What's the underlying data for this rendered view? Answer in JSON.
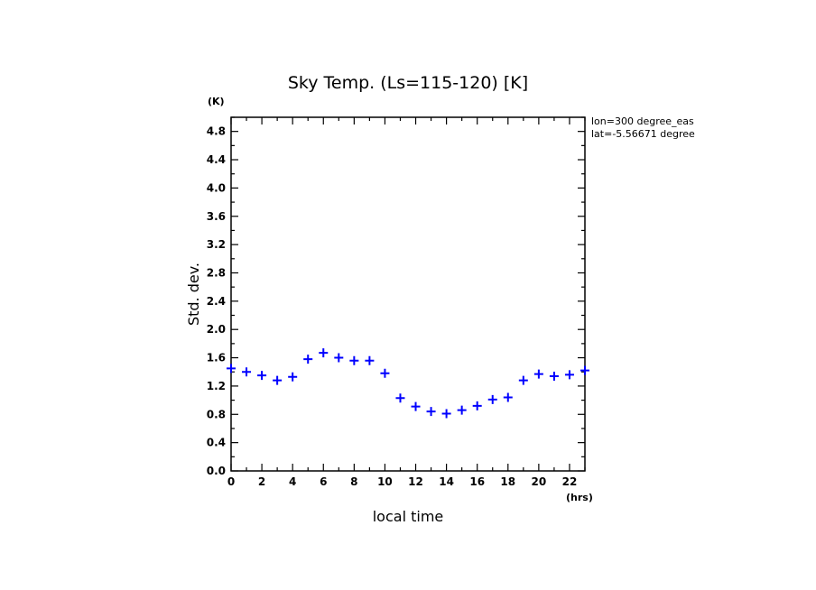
{
  "chart_data": {
    "type": "scatter",
    "title": "Sky Temp. (Ls=115-120) [K]",
    "xlabel": "local time",
    "ylabel": "Std. dev.",
    "x_unit": "(hrs)",
    "y_unit": "(K)",
    "xlim": [
      0,
      23
    ],
    "ylim": [
      0,
      5
    ],
    "x_ticks": [
      0,
      2,
      4,
      6,
      8,
      10,
      12,
      14,
      16,
      18,
      20,
      22
    ],
    "y_ticks": [
      0.0,
      0.4,
      0.8,
      1.2,
      1.6,
      2.0,
      2.4,
      2.8,
      3.2,
      3.6,
      4.0,
      4.4,
      4.8
    ],
    "y_tick_labels": [
      "0.0",
      "0.4",
      "0.8",
      "1.2",
      "1.6",
      "2.0",
      "2.4",
      "2.8",
      "3.2",
      "3.6",
      "4.0",
      "4.4",
      "4.8"
    ],
    "annotations": [
      "lon=300 degree_eas",
      "lat=-5.56671 degree"
    ],
    "marker": "plus",
    "color": "#0000ff",
    "grid": false,
    "x": [
      0,
      1,
      2,
      3,
      4,
      5,
      6,
      7,
      8,
      9,
      10,
      11,
      12,
      13,
      14,
      15,
      16,
      17,
      18,
      19,
      20,
      21,
      22,
      23
    ],
    "y": [
      1.45,
      1.4,
      1.35,
      1.28,
      1.33,
      1.58,
      1.67,
      1.6,
      1.56,
      1.56,
      1.38,
      1.03,
      0.91,
      0.84,
      0.81,
      0.86,
      0.92,
      1.01,
      1.04,
      1.28,
      1.37,
      1.34,
      1.36,
      1.42
    ]
  }
}
